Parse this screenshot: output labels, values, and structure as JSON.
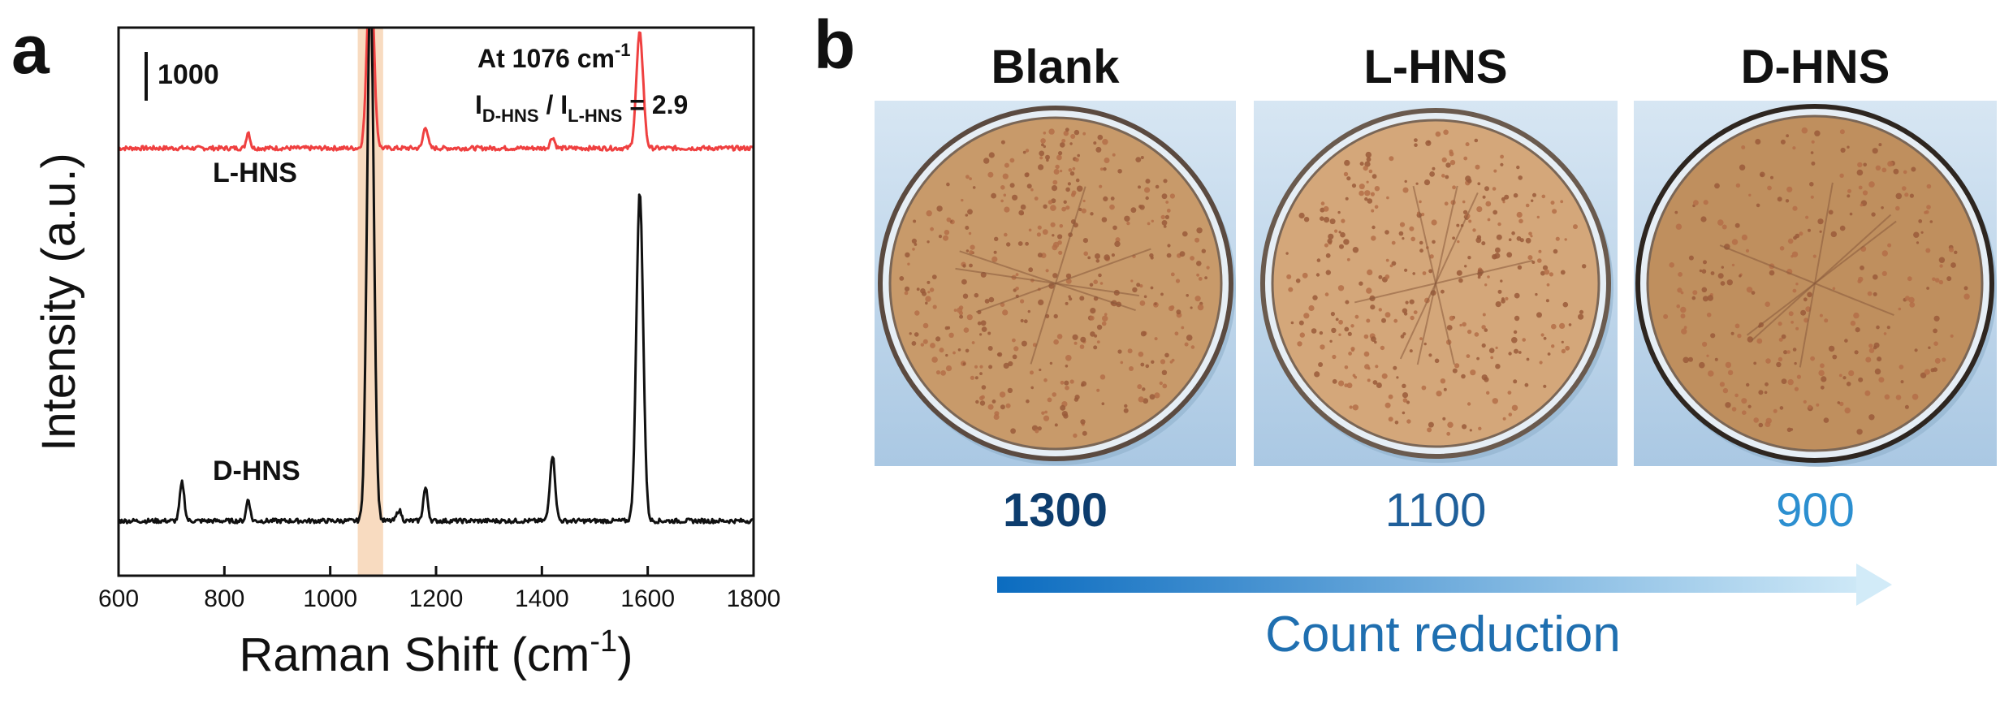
{
  "panels": {
    "a": "a",
    "b": "b"
  },
  "chart_data": {
    "type": "line",
    "xlabel": "Raman Shift (cm",
    "xlabel_sup": "-1",
    "xlabel_close": ")",
    "ylabel": "Intensity (a.u.)",
    "xlim": [
      600,
      1800
    ],
    "xticks": [
      600,
      800,
      1000,
      1200,
      1400,
      1600,
      1800
    ],
    "highlight_band": [
      1052,
      1100
    ],
    "scale_bar_label": "1000",
    "annotation": {
      "line1_text": "At 1076 cm",
      "line1_sup": "-1",
      "line2_I1": "I",
      "line2_sub1": "D-HNS",
      "line2_slash": " / ",
      "line2_I2": "I",
      "line2_sub2": "L-HNS",
      "line2_eq": " = 2.9"
    },
    "series": [
      {
        "name": "L-HNS",
        "color": "#ef4040",
        "baseline": 0.78,
        "peaks": [
          [
            845,
            0.03,
            5
          ],
          [
            1076,
            0.34,
            9
          ],
          [
            1180,
            0.04,
            6
          ],
          [
            1420,
            0.02,
            6
          ],
          [
            1585,
            0.21,
            9
          ]
        ]
      },
      {
        "name": "D-HNS",
        "color": "#111111",
        "baseline": 0.1,
        "peaks": [
          [
            720,
            0.07,
            6
          ],
          [
            845,
            0.04,
            5
          ],
          [
            1076,
            0.98,
            9
          ],
          [
            1130,
            0.02,
            6
          ],
          [
            1180,
            0.06,
            6
          ],
          [
            1420,
            0.12,
            7
          ],
          [
            1585,
            0.6,
            9
          ]
        ]
      }
    ]
  },
  "plates": [
    {
      "title": "Blank",
      "count": "1300",
      "count_color": "#0d3d6e",
      "bold": true,
      "agar": "#c89a6a",
      "rim": "#5b4a40"
    },
    {
      "title": "L-HNS",
      "count": "1100",
      "count_color": "#1f5f9a",
      "bold": false,
      "agar": "#d4a77a",
      "rim": "#6a5a4e"
    },
    {
      "title": "D-HNS",
      "count": "900",
      "count_color": "#2c8fd0",
      "bold": false,
      "agar": "#bf8f5e",
      "rim": "#2e2620"
    }
  ],
  "arrow": {
    "label": "Count reduction",
    "color_start": "#0b6cc0",
    "color_end": "#d2ebf8",
    "label_color": "#1f6fb0"
  },
  "colors": {
    "band": "#f8d9bd",
    "plate_bg_top": "#d7e6f3",
    "plate_bg_bottom": "#aac8e3"
  }
}
